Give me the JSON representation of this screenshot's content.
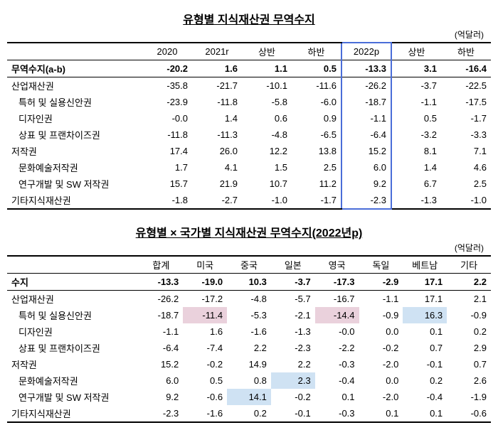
{
  "table1": {
    "title": "유형별 지식재산권 무역수지",
    "unit": "(억달러)",
    "headers": [
      "",
      "2020",
      "2021r",
      "상반",
      "하반",
      "2022p",
      "상반",
      "하반"
    ],
    "rows": [
      {
        "label": "무역수지(a-b)",
        "indent": 0,
        "bold": true,
        "topline": false,
        "vals": [
          "-20.2",
          "1.6",
          "1.1",
          "0.5",
          "-13.3",
          "3.1",
          "-16.4"
        ]
      },
      {
        "label": "산업재산권",
        "indent": 0,
        "bold": false,
        "topline": true,
        "vals": [
          "-35.8",
          "-21.7",
          "-10.1",
          "-11.6",
          "-26.2",
          "-3.7",
          "-22.5"
        ]
      },
      {
        "label": "특허 및 실용신안권",
        "indent": 1,
        "bold": false,
        "topline": false,
        "vals": [
          "-23.9",
          "-11.8",
          "-5.8",
          "-6.0",
          "-18.7",
          "-1.1",
          "-17.5"
        ]
      },
      {
        "label": "디자인권",
        "indent": 1,
        "bold": false,
        "topline": false,
        "vals": [
          "-0.0",
          "1.4",
          "0.6",
          "0.9",
          "-1.1",
          "0.5",
          "-1.7"
        ]
      },
      {
        "label": "상표 및 프랜차이즈권",
        "indent": 1,
        "bold": false,
        "topline": false,
        "vals": [
          "-11.8",
          "-11.3",
          "-4.8",
          "-6.5",
          "-6.4",
          "-3.2",
          "-3.3"
        ]
      },
      {
        "label": "저작권",
        "indent": 0,
        "bold": false,
        "topline": false,
        "vals": [
          "17.4",
          "26.0",
          "12.2",
          "13.8",
          "15.2",
          "8.1",
          "7.1"
        ]
      },
      {
        "label": "문화예술저작권",
        "indent": 1,
        "bold": false,
        "topline": false,
        "vals": [
          "1.7",
          "4.1",
          "1.5",
          "2.5",
          "6.0",
          "1.4",
          "4.6"
        ]
      },
      {
        "label": "연구개발 및 SW 저작권",
        "indent": 1,
        "bold": false,
        "topline": false,
        "vals": [
          "15.7",
          "21.9",
          "10.7",
          "11.2",
          "9.2",
          "6.7",
          "2.5"
        ]
      },
      {
        "label": "기타지식재산권",
        "indent": 0,
        "bold": false,
        "topline": false,
        "vals": [
          "-1.8",
          "-2.7",
          "-1.0",
          "-1.7",
          "-2.3",
          "-1.3",
          "-1.0"
        ]
      }
    ],
    "boxCol": 4
  },
  "table2": {
    "title": "유형별 × 국가별 지식재산권 무역수지(2022년p)",
    "unit": "(억달러)",
    "headers": [
      "",
      "합계",
      "미국",
      "중국",
      "일본",
      "영국",
      "독일",
      "베트남",
      "기타"
    ],
    "rows": [
      {
        "label": "수지",
        "indent": 0,
        "bold": true,
        "topline": false,
        "vals": [
          "-13.3",
          "-19.0",
          "10.3",
          "-3.7",
          "-17.3",
          "-2.9",
          "17.1",
          "2.2"
        ],
        "hl": {}
      },
      {
        "label": "산업재산권",
        "indent": 0,
        "bold": false,
        "topline": true,
        "vals": [
          "-26.2",
          "-17.2",
          "-4.8",
          "-5.7",
          "-16.7",
          "-1.1",
          "17.1",
          "2.1"
        ],
        "hl": {}
      },
      {
        "label": "특허 및 실용신안권",
        "indent": 1,
        "bold": false,
        "topline": false,
        "vals": [
          "-18.7",
          "-11.4",
          "-5.3",
          "-2.1",
          "-14.4",
          "-0.9",
          "16.3",
          "-0.9"
        ],
        "hl": {
          "1": "pink",
          "4": "pink",
          "6": "blue"
        }
      },
      {
        "label": "디자인권",
        "indent": 1,
        "bold": false,
        "topline": false,
        "vals": [
          "-1.1",
          "1.6",
          "-1.6",
          "-1.3",
          "-0.0",
          "0.0",
          "0.1",
          "0.2"
        ],
        "hl": {}
      },
      {
        "label": "상표 및 프랜차이즈권",
        "indent": 1,
        "bold": false,
        "topline": false,
        "vals": [
          "-6.4",
          "-7.4",
          "2.2",
          "-2.3",
          "-2.2",
          "-0.2",
          "0.7",
          "2.9"
        ],
        "hl": {}
      },
      {
        "label": "저작권",
        "indent": 0,
        "bold": false,
        "topline": false,
        "vals": [
          "15.2",
          "-0.2",
          "14.9",
          "2.2",
          "-0.3",
          "-2.0",
          "-0.1",
          "0.7"
        ],
        "hl": {}
      },
      {
        "label": "문화예술저작권",
        "indent": 1,
        "bold": false,
        "topline": false,
        "vals": [
          "6.0",
          "0.5",
          "0.8",
          "2.3",
          "-0.4",
          "0.0",
          "0.2",
          "2.6"
        ],
        "hl": {
          "3": "blue"
        }
      },
      {
        "label": "연구개발 및 SW 저작권",
        "indent": 1,
        "bold": false,
        "topline": false,
        "vals": [
          "9.2",
          "-0.6",
          "14.1",
          "-0.2",
          "0.1",
          "-2.0",
          "-0.4",
          "-1.9"
        ],
        "hl": {
          "2": "blue"
        }
      },
      {
        "label": "기타지식재산권",
        "indent": 0,
        "bold": false,
        "topline": false,
        "vals": [
          "-2.3",
          "-1.6",
          "0.2",
          "-0.1",
          "-0.3",
          "0.1",
          "0.1",
          "-0.6"
        ],
        "hl": {}
      }
    ]
  }
}
